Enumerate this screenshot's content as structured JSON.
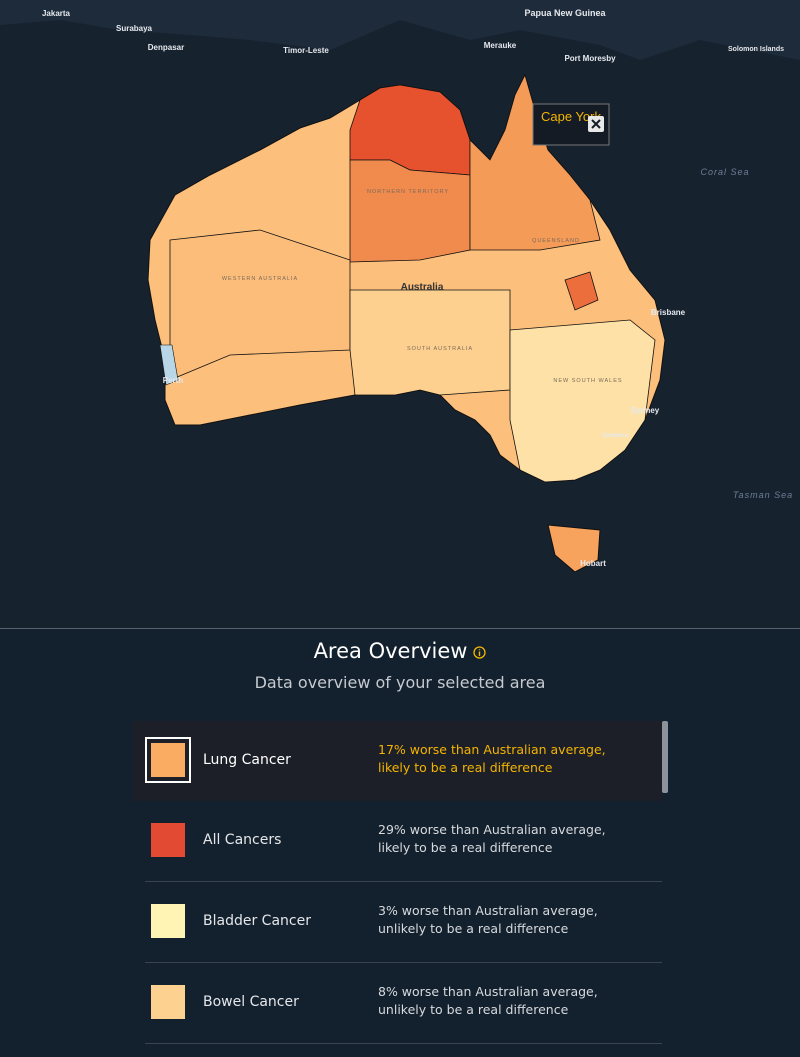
{
  "map": {
    "places": [
      "Jakarta",
      "Surabaya",
      "Denpasar",
      "Timor-Leste",
      "Papua New Guinea",
      "Merauke",
      "Port Moresby",
      "Solomon Islands",
      "Coral Sea",
      "Tasman Sea",
      "Australia",
      "Brisbane",
      "Sydney",
      "Perth",
      "Hobart",
      "Canberra"
    ],
    "regions": [
      "WESTERN AUSTRALIA",
      "NORTHERN TERRITORY",
      "QUEENSLAND",
      "SOUTH AUSTRALIA",
      "NEW SOUTH WALES"
    ],
    "tooltip": "Cape York"
  },
  "panel": {
    "title": "Area Overview",
    "subtitle": "Data overview of your selected area",
    "items": [
      {
        "name": "Lung Cancer",
        "description": "17% worse than Australian average, likely to be a real difference",
        "color": "#f9ac62",
        "selected": true
      },
      {
        "name": "All Cancers",
        "description": "29% worse than Australian average, likely to be a real difference",
        "color": "#e34a33",
        "selected": false
      },
      {
        "name": "Bladder Cancer",
        "description": "3% worse than Australian average, unlikely to be a real difference",
        "color": "#fff4b3",
        "selected": false
      },
      {
        "name": "Bowel Cancer",
        "description": "8% worse than Australian average, unlikely to be a real difference",
        "color": "#fdd190",
        "selected": false
      }
    ]
  }
}
